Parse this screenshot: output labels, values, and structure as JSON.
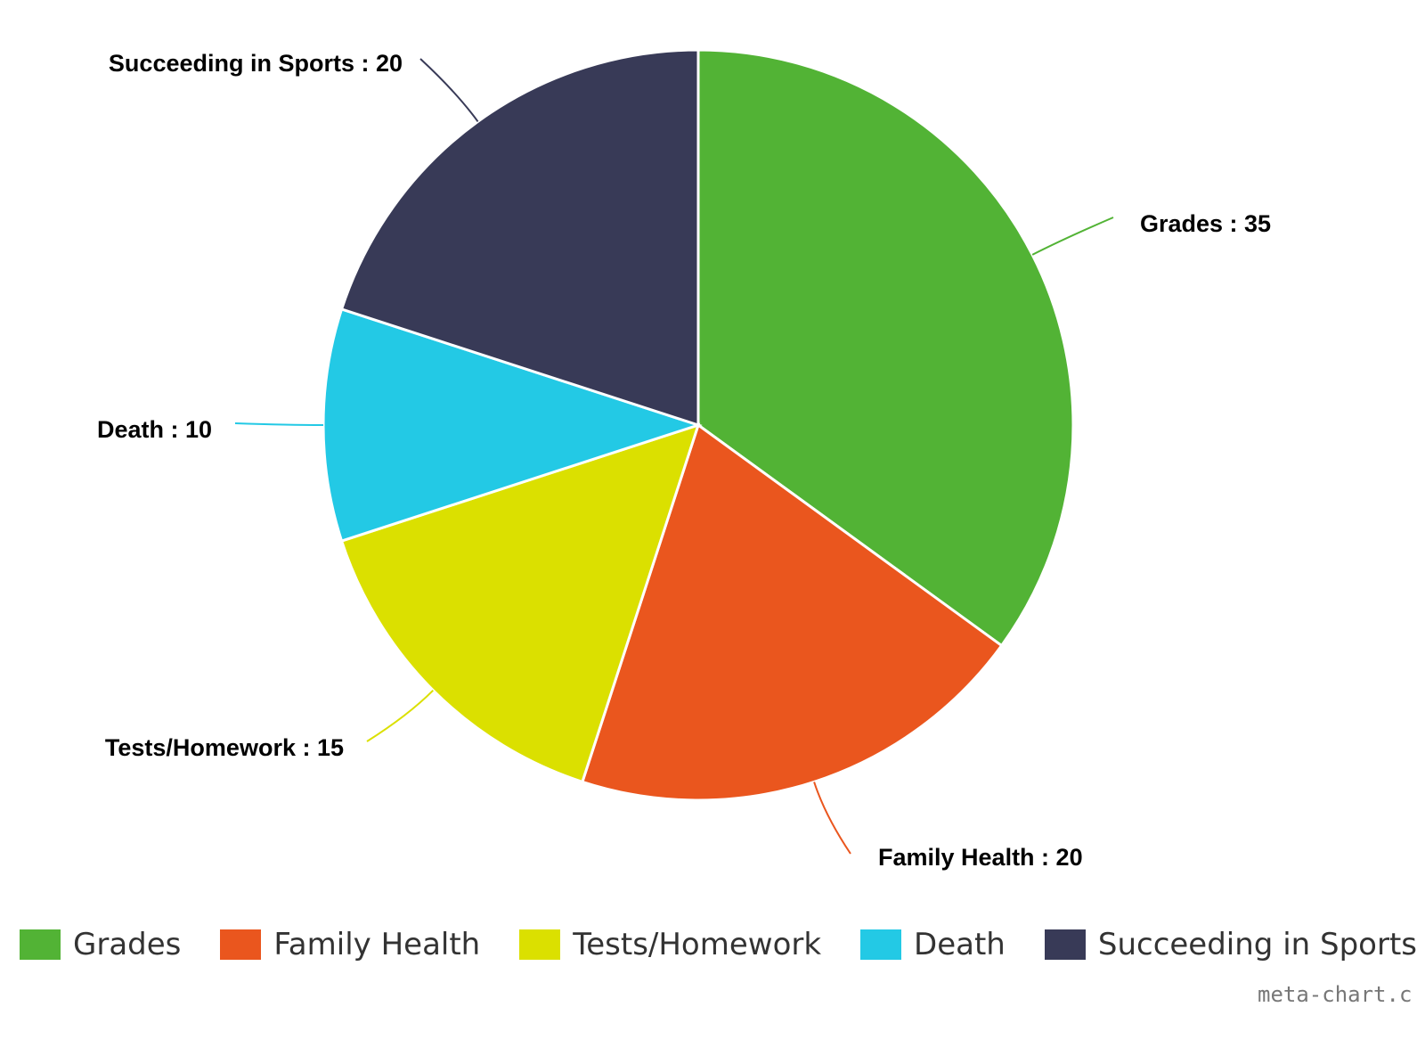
{
  "chart_data": {
    "type": "pie",
    "slices": [
      {
        "label": "Grades",
        "value": 35,
        "color": "#52b335"
      },
      {
        "label": "Family Health",
        "value": 20,
        "color": "#ea561e"
      },
      {
        "label": "Tests/Homework",
        "value": 15,
        "color": "#dbe000"
      },
      {
        "label": "Death",
        "value": 10,
        "color": "#23c9e5"
      },
      {
        "label": "Succeeding in Sports",
        "value": 20,
        "color": "#383a57"
      }
    ],
    "start_angle": "top, clockwise",
    "legend_position": "bottom"
  },
  "credit": "meta-chart.c"
}
